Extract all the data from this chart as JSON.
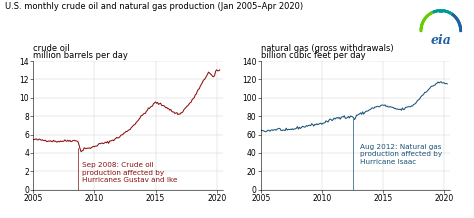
{
  "title": "U.S. monthly crude oil and natural gas production (Jan 2005–Apr 2020)",
  "title_fontsize": 6.0,
  "left_label1": "crude oil",
  "left_label2": "million barrels per day",
  "right_label1": "natural gas (gross withdrawals)",
  "right_label2": "billion cubic feet per day",
  "left_ylim": [
    0,
    14
  ],
  "right_ylim": [
    0,
    140
  ],
  "left_yticks": [
    0,
    2,
    4,
    6,
    8,
    10,
    12,
    14
  ],
  "right_yticks": [
    0,
    20,
    40,
    60,
    80,
    100,
    120,
    140
  ],
  "xticks": [
    2005,
    2010,
    2015,
    2020
  ],
  "left_color": "#8B1010",
  "right_color": "#1a5276",
  "left_annotation": "Sep 2008: Crude oil\nproduction affected by\nHurricanes Gustav and Ike",
  "right_annotation": "Aug 2012: Natural gas\nproduction affected by\nHurricane Isaac",
  "label_fontsize": 6.0,
  "tick_fontsize": 5.5,
  "ann_fontsize": 5.2,
  "linewidth": 0.75,
  "grid_color": "#cccccc"
}
